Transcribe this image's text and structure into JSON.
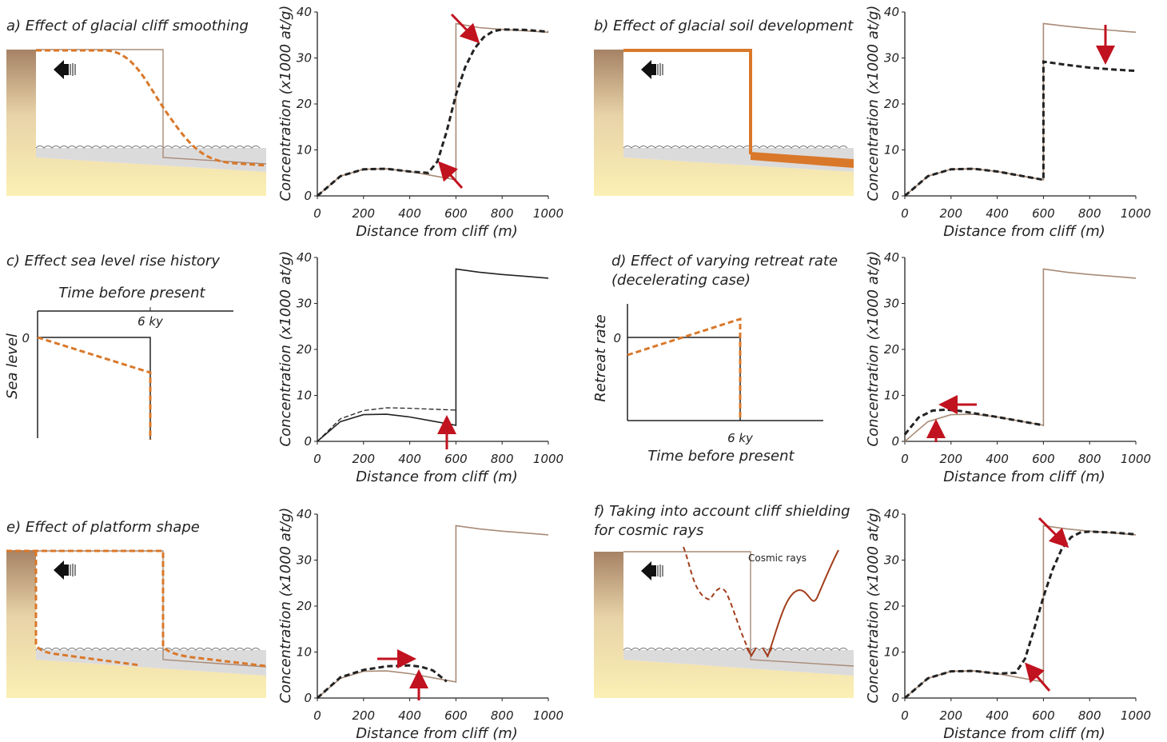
{
  "panels": {
    "a": {
      "title": "a) Effect of  glacial cliff smoothing"
    },
    "b": {
      "title": "b) Effect of  glacial soil development"
    },
    "c": {
      "title": "c) Effect sea level rise history",
      "x_axis_label": "Time before present",
      "y_axis_label": "Sea level",
      "tick_6ky": "6 ky",
      "tick_0": "0"
    },
    "d": {
      "title_line1": "d) Effect of varying retreat rate",
      "title_line2": "(decelerating case)",
      "x_axis_label": "Time before present",
      "y_axis_label": "Retreat rate",
      "tick_6ky": "6 ky",
      "tick_0": "0"
    },
    "e": {
      "title": "e) Effect of platform shape"
    },
    "f": {
      "title_line1": "f) Taking into account cliff shielding",
      "title_line2": "for cosmic rays",
      "cosmic_label": "Cosmic rays"
    }
  },
  "colors": {
    "reference": "#a88b77",
    "orange": "#d9782a",
    "dark": "#222222",
    "arrow": "#c1121f"
  },
  "chart_data": [
    {
      "panel": "a",
      "type": "line",
      "xlabel": "Distance from cliff (m)",
      "ylabel": "Concentration (x1000 at/g)",
      "xlim": [
        0,
        1000
      ],
      "ylim": [
        0,
        40
      ],
      "xticks": [
        0,
        200,
        400,
        600,
        800,
        1000
      ],
      "yticks": [
        0,
        10,
        20,
        30,
        40
      ],
      "series": [
        {
          "style": "reference",
          "x": [
            0,
            100,
            200,
            300,
            400,
            500,
            600,
            600,
            700,
            800,
            900,
            1000
          ],
          "y": [
            0,
            4.3,
            5.8,
            5.9,
            5.3,
            4.4,
            3.5,
            37.5,
            36.6,
            36.2,
            35.9,
            35.6
          ]
        },
        {
          "style": "modified",
          "x": [
            0,
            100,
            200,
            300,
            400,
            480,
            520,
            560,
            600,
            640,
            680,
            720,
            760,
            800,
            900,
            1000
          ],
          "y": [
            0,
            4.3,
            5.8,
            5.9,
            5.3,
            5.0,
            7.5,
            14,
            22,
            28,
            32,
            34.5,
            35.8,
            36.2,
            36.1,
            35.7
          ]
        }
      ]
    },
    {
      "panel": "b",
      "type": "line",
      "xlabel": "Distance from cliff (m)",
      "ylabel": "Concentration (x1000 at/g)",
      "xlim": [
        0,
        1000
      ],
      "ylim": [
        0,
        40
      ],
      "xticks": [
        0,
        200,
        400,
        600,
        800,
        1000
      ],
      "yticks": [
        0,
        10,
        20,
        30,
        40
      ],
      "series": [
        {
          "style": "reference",
          "x": [
            0,
            100,
            200,
            300,
            400,
            500,
            600,
            600,
            700,
            800,
            900,
            1000
          ],
          "y": [
            0,
            4.3,
            5.8,
            5.9,
            5.3,
            4.4,
            3.5,
            37.5,
            36.9,
            36.4,
            36.0,
            35.6
          ]
        },
        {
          "style": "modified",
          "x": [
            0,
            100,
            200,
            300,
            400,
            500,
            600,
            600,
            700,
            800,
            900,
            1000
          ],
          "y": [
            0,
            4.3,
            5.8,
            5.9,
            5.3,
            4.4,
            3.5,
            29.2,
            28.5,
            27.9,
            27.5,
            27.2
          ]
        }
      ]
    },
    {
      "panel": "c",
      "type": "line",
      "xlabel": "Distance from cliff (m)",
      "ylabel": "Concentration (x1000 at/g)",
      "xlim": [
        0,
        1000
      ],
      "ylim": [
        0,
        40
      ],
      "xticks": [
        0,
        200,
        400,
        600,
        800,
        1000
      ],
      "yticks": [
        0,
        10,
        20,
        30,
        40
      ],
      "series": [
        {
          "style": "solid",
          "x": [
            0,
            100,
            200,
            300,
            400,
            500,
            600,
            600,
            700,
            800,
            900,
            1000
          ],
          "y": [
            0,
            4.3,
            5.8,
            5.9,
            5.3,
            4.4,
            3.5,
            37.5,
            36.8,
            36.3,
            35.9,
            35.5
          ]
        },
        {
          "style": "thin-dashed",
          "x": [
            0,
            100,
            200,
            300,
            400,
            500,
            600
          ],
          "y": [
            0,
            4.9,
            6.7,
            7.3,
            7.2,
            7.0,
            6.8
          ]
        }
      ]
    },
    {
      "panel": "d",
      "type": "line",
      "xlabel": "Distance from cliff (m)",
      "ylabel": "Concentration (x1000 at/g)",
      "xlim": [
        0,
        1000
      ],
      "ylim": [
        0,
        40
      ],
      "xticks": [
        0,
        200,
        400,
        600,
        800,
        1000
      ],
      "yticks": [
        0,
        10,
        20,
        30,
        40
      ],
      "series": [
        {
          "style": "reference",
          "x": [
            0,
            100,
            200,
            300,
            400,
            500,
            600,
            600,
            700,
            800,
            900,
            1000
          ],
          "y": [
            0,
            4.3,
            5.8,
            5.9,
            5.3,
            4.4,
            3.5,
            37.5,
            36.8,
            36.3,
            35.9,
            35.5
          ]
        },
        {
          "style": "modified",
          "x": [
            0,
            60,
            120,
            180,
            240,
            300,
            400,
            500,
            600
          ],
          "y": [
            1.5,
            5.2,
            6.7,
            6.9,
            6.6,
            6.1,
            5.3,
            4.4,
            3.5
          ]
        }
      ]
    },
    {
      "panel": "e",
      "type": "line",
      "xlabel": "Distance from cliff (m)",
      "ylabel": "Concentration (x1000 at/g)",
      "xlim": [
        0,
        1000
      ],
      "ylim": [
        0,
        40
      ],
      "xticks": [
        0,
        200,
        400,
        600,
        800,
        1000
      ],
      "yticks": [
        0,
        10,
        20,
        30,
        40
      ],
      "series": [
        {
          "style": "reference",
          "x": [
            0,
            100,
            200,
            300,
            400,
            500,
            600,
            600,
            700,
            800,
            900,
            1000
          ],
          "y": [
            0,
            4.3,
            5.8,
            5.9,
            5.3,
            4.4,
            3.5,
            37.5,
            36.8,
            36.3,
            35.9,
            35.5
          ]
        },
        {
          "style": "modified",
          "x": [
            0,
            100,
            200,
            300,
            400,
            450,
            500,
            560
          ],
          "y": [
            0,
            4.5,
            6.1,
            6.9,
            7.1,
            6.8,
            6.0,
            3.6
          ]
        }
      ]
    },
    {
      "panel": "f",
      "type": "line",
      "xlabel": "Distance from cliff (m)",
      "ylabel": "Concentration (x1000 at/g)",
      "xlim": [
        0,
        1000
      ],
      "ylim": [
        0,
        40
      ],
      "xticks": [
        0,
        200,
        400,
        600,
        800,
        1000
      ],
      "yticks": [
        0,
        10,
        20,
        30,
        40
      ],
      "series": [
        {
          "style": "reference",
          "x": [
            0,
            100,
            200,
            300,
            400,
            500,
            600,
            600,
            700,
            800,
            900,
            1000
          ],
          "y": [
            0,
            4.3,
            5.8,
            5.9,
            5.3,
            4.4,
            3.5,
            37.5,
            36.8,
            36.3,
            35.9,
            35.5
          ]
        },
        {
          "style": "modified",
          "x": [
            0,
            100,
            200,
            300,
            400,
            480,
            520,
            560,
            600,
            640,
            680,
            720,
            760,
            800,
            900,
            1000
          ],
          "y": [
            0,
            4.3,
            5.8,
            5.9,
            5.3,
            5.5,
            8.5,
            15,
            22,
            28,
            32.5,
            35,
            36,
            36.2,
            36,
            35.6
          ]
        }
      ]
    }
  ]
}
